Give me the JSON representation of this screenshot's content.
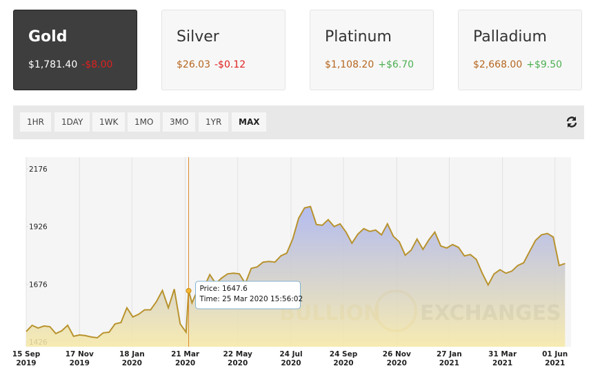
{
  "cards": [
    {
      "name": "Gold",
      "price": "$1,781.40",
      "change": "-$8.00"
    },
    {
      "name": "Silver",
      "price": "$26.03",
      "change": "-$0.12"
    },
    {
      "name": "Platinum",
      "price": "$1,108.20",
      "change": "+$6.70"
    },
    {
      "name": "Palladium",
      "price": "$2,668.00",
      "change": "+$9.50"
    }
  ],
  "selected_card": 0,
  "ranges": [
    "1HR",
    "1DAY",
    "1WK",
    "1MO",
    "3MO",
    "1YR",
    "MAX"
  ],
  "active_range": 6,
  "chart_data": {
    "type": "line",
    "watermark": [
      "BULLION",
      "EXCHANGES"
    ],
    "xlim": [
      "2019-09-15",
      "2021-06-20"
    ],
    "ylim": [
      1405,
      2227
    ],
    "yticks": [
      1426,
      1676,
      1926,
      2176
    ],
    "xticks": [
      {
        "value": "2019-09-15",
        "label": [
          "15 Sep",
          "2019"
        ]
      },
      {
        "value": "2019-11-17",
        "label": [
          "17 Nov",
          "2019"
        ]
      },
      {
        "value": "2020-01-18",
        "label": [
          "18 Jan",
          "2020"
        ]
      },
      {
        "value": "2020-03-21",
        "label": [
          "21 Mar",
          "2020"
        ]
      },
      {
        "value": "2020-05-22",
        "label": [
          "22 May",
          "2020"
        ]
      },
      {
        "value": "2020-07-24",
        "label": [
          "24 Jul",
          "2020"
        ]
      },
      {
        "value": "2020-09-24",
        "label": [
          "24 Sep",
          "2020"
        ]
      },
      {
        "value": "2020-11-26",
        "label": [
          "26 Nov",
          "2020"
        ]
      },
      {
        "value": "2021-01-27",
        "label": [
          "27 Jan",
          "2021"
        ]
      },
      {
        "value": "2021-03-31",
        "label": [
          "31 Mar",
          "2021"
        ]
      },
      {
        "value": "2021-06-01",
        "label": [
          "01 Jun",
          "2021"
        ]
      }
    ],
    "xgrid": true,
    "color": "#b8922c",
    "x": [
      "2019-09-15",
      "2019-09-22",
      "2019-09-29",
      "2019-10-06",
      "2019-10-13",
      "2019-10-20",
      "2019-10-27",
      "2019-11-03",
      "2019-11-10",
      "2019-11-17",
      "2019-11-24",
      "2019-12-01",
      "2019-12-08",
      "2019-12-15",
      "2019-12-22",
      "2019-12-29",
      "2020-01-05",
      "2020-01-12",
      "2020-01-19",
      "2020-01-26",
      "2020-02-02",
      "2020-02-09",
      "2020-02-16",
      "2020-02-23",
      "2020-03-01",
      "2020-03-08",
      "2020-03-15",
      "2020-03-22",
      "2020-03-25",
      "2020-03-29",
      "2020-04-05",
      "2020-04-12",
      "2020-04-19",
      "2020-04-26",
      "2020-05-03",
      "2020-05-10",
      "2020-05-17",
      "2020-05-24",
      "2020-05-31",
      "2020-06-07",
      "2020-06-14",
      "2020-06-21",
      "2020-06-28",
      "2020-07-05",
      "2020-07-12",
      "2020-07-19",
      "2020-07-26",
      "2020-08-02",
      "2020-08-09",
      "2020-08-16",
      "2020-08-23",
      "2020-08-30",
      "2020-09-06",
      "2020-09-13",
      "2020-09-20",
      "2020-09-27",
      "2020-10-04",
      "2020-10-11",
      "2020-10-18",
      "2020-10-25",
      "2020-11-01",
      "2020-11-08",
      "2020-11-15",
      "2020-11-22",
      "2020-11-29",
      "2020-12-06",
      "2020-12-13",
      "2020-12-20",
      "2020-12-27",
      "2021-01-03",
      "2021-01-10",
      "2021-01-17",
      "2021-01-24",
      "2021-01-31",
      "2021-02-07",
      "2021-02-14",
      "2021-02-21",
      "2021-02-28",
      "2021-03-07",
      "2021-03-14",
      "2021-03-21",
      "2021-03-28",
      "2021-04-04",
      "2021-04-11",
      "2021-04-18",
      "2021-04-25",
      "2021-05-02",
      "2021-05-09",
      "2021-05-16",
      "2021-05-23",
      "2021-05-30",
      "2021-06-06",
      "2021-06-13"
    ],
    "values": [
      1471,
      1498,
      1486,
      1495,
      1492,
      1462,
      1474,
      1498,
      1450,
      1456,
      1453,
      1447,
      1444,
      1465,
      1468,
      1504,
      1510,
      1574,
      1534,
      1546,
      1565,
      1565,
      1601,
      1649,
      1574,
      1655,
      1504,
      1468,
      1647.6,
      1595,
      1655,
      1661,
      1718,
      1679,
      1703,
      1721,
      1724,
      1721,
      1679,
      1745,
      1751,
      1772,
      1775,
      1772,
      1799,
      1811,
      1872,
      1962,
      2007,
      2013,
      1935,
      1932,
      1956,
      1926,
      1938,
      1902,
      1854,
      1893,
      1917,
      1905,
      1911,
      1890,
      1938,
      1884,
      1860,
      1802,
      1824,
      1872,
      1827,
      1869,
      1902,
      1842,
      1833,
      1848,
      1836,
      1799,
      1805,
      1784,
      1724,
      1673,
      1721,
      1739,
      1724,
      1733,
      1757,
      1769,
      1818,
      1866,
      1890,
      1896,
      1881,
      1757,
      1766
    ],
    "tooltip": {
      "x": "2020-03-25",
      "y": 1647.6,
      "lines": [
        "Price: 1647.6",
        "Time: 25 Mar 2020 15:56:02"
      ]
    }
  }
}
